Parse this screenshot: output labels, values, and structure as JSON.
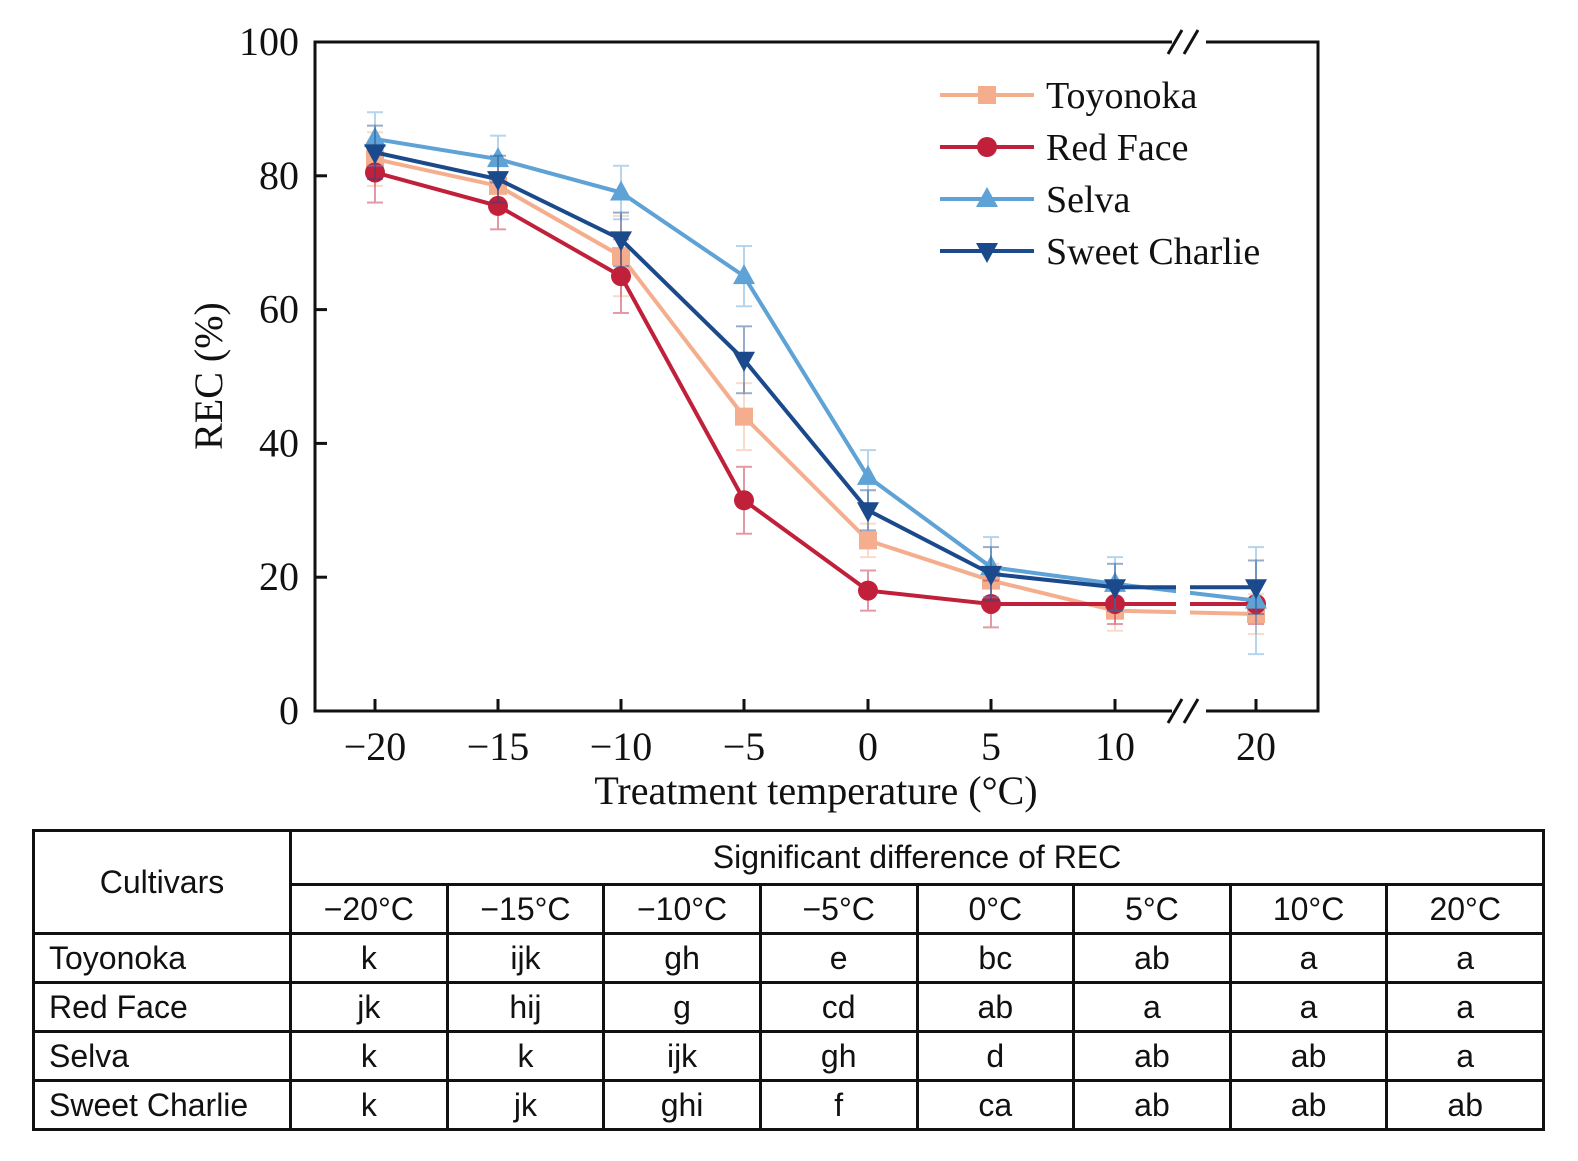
{
  "chart_data": {
    "type": "line",
    "x_tick_labels": [
      "−20",
      "−15",
      "−10",
      "−5",
      "0",
      "5",
      "10",
      "20"
    ],
    "x": [
      -20,
      -15,
      -10,
      -5,
      0,
      5,
      10,
      20
    ],
    "y_ticks": [
      "0",
      "20",
      "40",
      "60",
      "80",
      "100"
    ],
    "ylim": [
      0,
      100
    ],
    "xlabel": "Treatment temperature (°C)",
    "ylabel": "REC (%)",
    "axis_break": "between 10 and 20 on x-axis",
    "series": [
      {
        "name": "Toyonoka",
        "color": "#f4ae8e",
        "marker": "square",
        "values": [
          82.5,
          78.5,
          68,
          44,
          25.5,
          19.5,
          15,
          14.5
        ],
        "errors": [
          4,
          4,
          6,
          5,
          2.5,
          2.5,
          3,
          3
        ]
      },
      {
        "name": "Red Face",
        "color": "#c0203a",
        "marker": "circle",
        "values": [
          80.5,
          75.5,
          65,
          31.5,
          18,
          16,
          16,
          16
        ],
        "errors": [
          4.5,
          3.5,
          5.5,
          5,
          3,
          3.5,
          3,
          3
        ]
      },
      {
        "name": "Selva",
        "color": "#5ea2d6",
        "marker": "triangle-up",
        "values": [
          85.5,
          82.5,
          77.5,
          65,
          35,
          21.5,
          19,
          16.5
        ],
        "errors": [
          4,
          3.5,
          4,
          4.5,
          4,
          4.5,
          4,
          8
        ]
      },
      {
        "name": "Sweet Charlie",
        "color": "#1b4a8c",
        "marker": "triangle-down",
        "values": [
          83.5,
          79.5,
          70.5,
          52.5,
          30,
          20.5,
          18.5,
          18.5
        ],
        "errors": [
          4,
          3.5,
          4,
          5,
          3,
          4,
          3.5,
          4
        ]
      }
    ]
  },
  "table": {
    "corner_label": "Cultivars",
    "group_label": "Significant difference of REC",
    "columns": [
      "−20°C",
      "−15°C",
      "−10°C",
      "−5°C",
      "0°C",
      "5°C",
      "10°C",
      "20°C"
    ],
    "rows": [
      {
        "cultivar": "Toyonoka",
        "cells": [
          "k",
          "ijk",
          "gh",
          "e",
          "bc",
          "ab",
          "a",
          "a"
        ]
      },
      {
        "cultivar": "Red Face",
        "cells": [
          "jk",
          "hij",
          "g",
          "cd",
          "ab",
          "a",
          "a",
          "a"
        ]
      },
      {
        "cultivar": "Selva",
        "cells": [
          "k",
          "k",
          "ijk",
          "gh",
          "d",
          "ab",
          "ab",
          "a"
        ]
      },
      {
        "cultivar": "Sweet Charlie",
        "cells": [
          "k",
          "jk",
          "ghi",
          "f",
          "ca",
          "ab",
          "ab",
          "ab"
        ]
      }
    ]
  }
}
